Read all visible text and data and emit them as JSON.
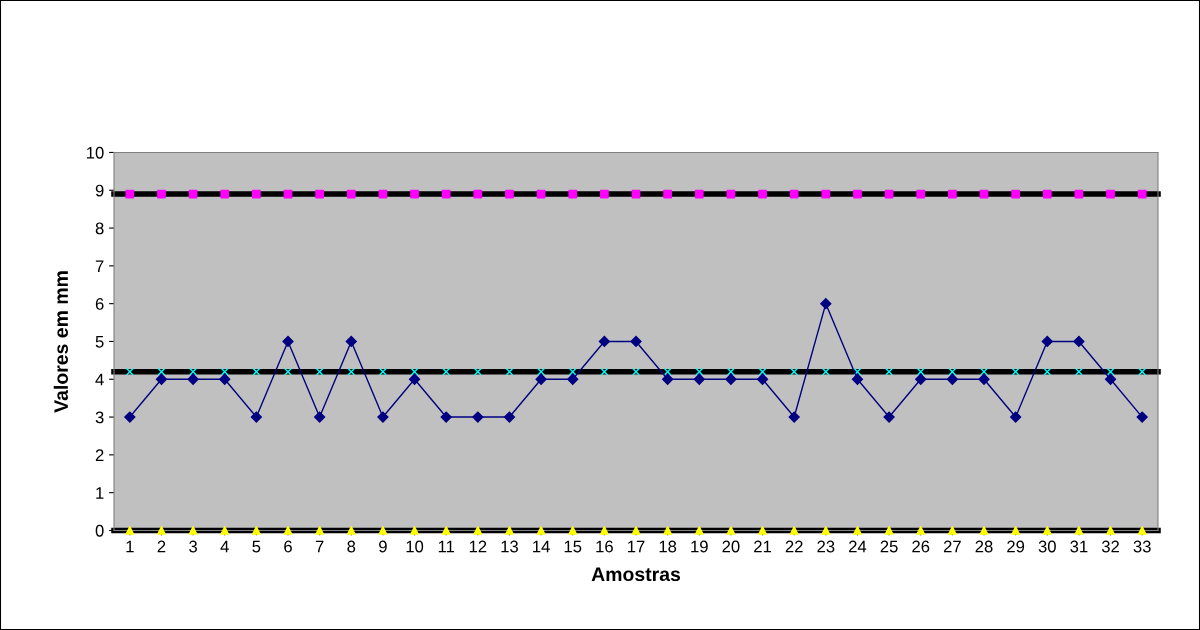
{
  "chart_data": {
    "type": "line",
    "xlabel": "Amostras",
    "ylabel": "Valores em mm",
    "categories": [
      "1",
      "2",
      "3",
      "4",
      "5",
      "6",
      "7",
      "8",
      "9",
      "10",
      "11",
      "12",
      "13",
      "14",
      "15",
      "16",
      "17",
      "18",
      "19",
      "20",
      "21",
      "22",
      "23",
      "24",
      "25",
      "26",
      "27",
      "28",
      "29",
      "30",
      "31",
      "32",
      "33"
    ],
    "series": [
      {
        "marker": "diamond",
        "color": "#000080",
        "values": [
          3,
          4,
          4,
          4,
          3,
          5,
          3,
          5,
          3,
          4,
          3,
          3,
          3,
          4,
          4,
          5,
          5,
          4,
          4,
          4,
          4,
          3,
          6,
          4,
          3,
          4,
          4,
          4,
          3,
          5,
          5,
          4,
          3
        ]
      },
      {
        "type": "scatter",
        "marker": "square",
        "color": "#ff00ff",
        "values": [
          8.9,
          8.9,
          8.9,
          8.9,
          8.9,
          8.9,
          8.9,
          8.9,
          8.9,
          8.9,
          8.9,
          8.9,
          8.9,
          8.9,
          8.9,
          8.9,
          8.9,
          8.9,
          8.9,
          8.9,
          8.9,
          8.9,
          8.9,
          8.9,
          8.9,
          8.9,
          8.9,
          8.9,
          8.9,
          8.9,
          8.9,
          8.9,
          8.9
        ]
      },
      {
        "type": "scatter",
        "marker": "cross",
        "color": "#00ffff",
        "values": [
          4.2,
          4.2,
          4.2,
          4.2,
          4.2,
          4.2,
          4.2,
          4.2,
          4.2,
          4.2,
          4.2,
          4.2,
          4.2,
          4.2,
          4.2,
          4.2,
          4.2,
          4.2,
          4.2,
          4.2,
          4.2,
          4.2,
          4.2,
          4.2,
          4.2,
          4.2,
          4.2,
          4.2,
          4.2,
          4.2,
          4.2,
          4.2,
          4.2
        ]
      },
      {
        "type": "scatter",
        "marker": "triangle",
        "color": "#ffff00",
        "values": [
          0,
          0,
          0,
          0,
          0,
          0,
          0,
          0,
          0,
          0,
          0,
          0,
          0,
          0,
          0,
          0,
          0,
          0,
          0,
          0,
          0,
          0,
          0,
          0,
          0,
          0,
          0,
          0,
          0,
          0,
          0,
          0,
          0
        ]
      }
    ],
    "ref_lines": [
      {
        "axis": "y",
        "value": 8.9,
        "color": "#000000",
        "line_style": "solid"
      },
      {
        "axis": "y",
        "value": 4.2,
        "color": "#000000",
        "line_style": "solid"
      },
      {
        "axis": "y",
        "value": 0,
        "color": "#000000",
        "line_style": "solid"
      }
    ],
    "ylim": [
      0,
      10
    ],
    "yticks": [
      0,
      1,
      2,
      3,
      4,
      5,
      6,
      7,
      8,
      9,
      10
    ],
    "grid": false,
    "legend": false
  }
}
